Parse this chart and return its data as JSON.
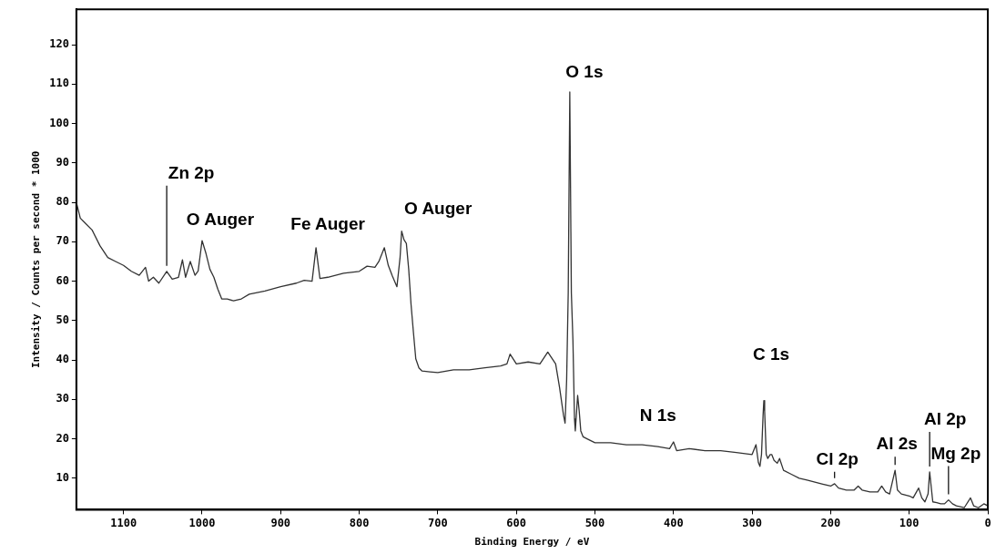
{
  "chart_data": {
    "type": "line",
    "xlabel": "Binding Energy / eV",
    "ylabel": "Intensity / Counts per second * 1000",
    "x": [
      1160,
      1155,
      1150,
      1140,
      1130,
      1120,
      1110,
      1100,
      1090,
      1080,
      1072,
      1068,
      1062,
      1055,
      1045,
      1038,
      1030,
      1025,
      1021,
      1015,
      1009,
      1005,
      1000,
      995,
      990,
      985,
      980,
      975,
      968,
      960,
      950,
      940,
      920,
      900,
      880,
      870,
      860,
      855,
      850,
      840,
      820,
      800,
      790,
      780,
      775,
      768,
      763,
      758,
      752,
      748,
      746,
      743,
      740,
      737,
      734,
      731,
      728,
      724,
      720,
      710,
      700,
      680,
      660,
      640,
      620,
      612,
      608,
      600,
      585,
      570,
      560,
      555,
      550,
      545,
      540,
      538,
      536,
      534,
      532,
      530,
      528,
      526,
      525,
      523,
      522,
      520,
      518,
      515,
      510,
      500,
      480,
      460,
      440,
      420,
      405,
      400,
      396,
      380,
      360,
      340,
      320,
      300,
      295,
      292,
      290,
      288,
      286,
      285,
      284,
      282,
      280,
      277,
      275,
      272,
      268,
      265,
      260,
      250,
      240,
      230,
      220,
      210,
      200,
      195,
      190,
      180,
      170,
      165,
      160,
      150,
      140,
      135,
      130,
      125,
      118,
      115,
      110,
      100,
      95,
      88,
      84,
      80,
      76,
      74,
      70,
      65,
      60,
      55,
      50,
      45,
      40,
      30,
      22,
      18,
      12,
      5,
      0
    ],
    "series": [
      {
        "color": "#333333",
        "values": [
          80,
          76,
          75,
          73,
          69,
          66,
          65,
          64,
          62.5,
          61.5,
          63.5,
          60,
          61,
          59.5,
          62.5,
          60.5,
          61,
          65.4,
          61,
          65,
          61.5,
          62.6,
          70.3,
          67,
          63,
          61,
          58,
          55.5,
          55.5,
          55,
          55.5,
          56.7,
          57.5,
          58.6,
          59.5,
          60.2,
          60,
          68.5,
          60.7,
          61,
          62,
          62.5,
          63.8,
          63.5,
          65,
          68.5,
          64,
          61.4,
          58.6,
          66,
          72.7,
          70.5,
          69.6,
          63,
          54,
          47,
          40.3,
          38,
          37.2,
          37,
          36.8,
          37.5,
          37.5,
          38,
          38.5,
          39,
          41.5,
          39,
          39.5,
          39,
          42,
          40.5,
          39,
          33,
          26,
          24,
          35,
          57,
          108,
          57,
          45,
          25,
          22,
          28,
          31,
          27,
          22,
          20.5,
          20,
          19,
          19,
          18.5,
          18.5,
          18,
          17.5,
          19.2,
          17,
          17.5,
          17,
          17,
          16.5,
          16,
          18.5,
          14,
          13,
          16,
          26,
          29.7,
          27,
          16,
          15,
          16,
          16,
          14.5,
          13.8,
          15,
          12,
          11,
          10,
          9.5,
          9,
          8.5,
          8,
          8.6,
          7.5,
          7,
          7,
          8,
          7,
          6.5,
          6.5,
          8,
          6.5,
          6,
          12,
          7,
          6,
          5.5,
          5,
          7.5,
          5,
          4,
          6,
          11.6,
          4,
          3.8,
          3.5,
          3.5,
          4.5,
          3.5,
          3,
          2.5,
          5,
          3,
          2.5,
          3.5,
          3
        ]
      }
    ],
    "xlim": [
      1160,
      0
    ],
    "xticks": [
      1100,
      1000,
      900,
      800,
      700,
      600,
      500,
      400,
      300,
      200,
      100,
      0
    ],
    "ylim": [
      2,
      129
    ],
    "yticks": [
      10,
      20,
      30,
      40,
      50,
      60,
      70,
      80,
      90,
      100,
      110,
      120
    ],
    "grid": false,
    "legend": false,
    "marker": "none",
    "line_style": "solid",
    "annotations": [
      {
        "text": "Zn 2p",
        "x": 1045,
        "y": 62.5
      },
      {
        "text": "O Auger",
        "x": 1000,
        "y": 70.3
      },
      {
        "text": "Fe Auger",
        "x": 855,
        "y": 68.5
      },
      {
        "text": "O Auger",
        "x": 746,
        "y": 72.7
      },
      {
        "text": "O 1s",
        "x": 532,
        "y": 108
      },
      {
        "text": "N 1s",
        "x": 400,
        "y": 19.2
      },
      {
        "text": "C 1s",
        "x": 285,
        "y": 29.7
      },
      {
        "text": "Cl 2p",
        "x": 195,
        "y": 8.6
      },
      {
        "text": "Al 2s",
        "x": 118,
        "y": 12
      },
      {
        "text": "Al 2p",
        "x": 74,
        "y": 11.6
      },
      {
        "text": "Mg 2p",
        "x": 50,
        "y": 4.5
      }
    ]
  }
}
